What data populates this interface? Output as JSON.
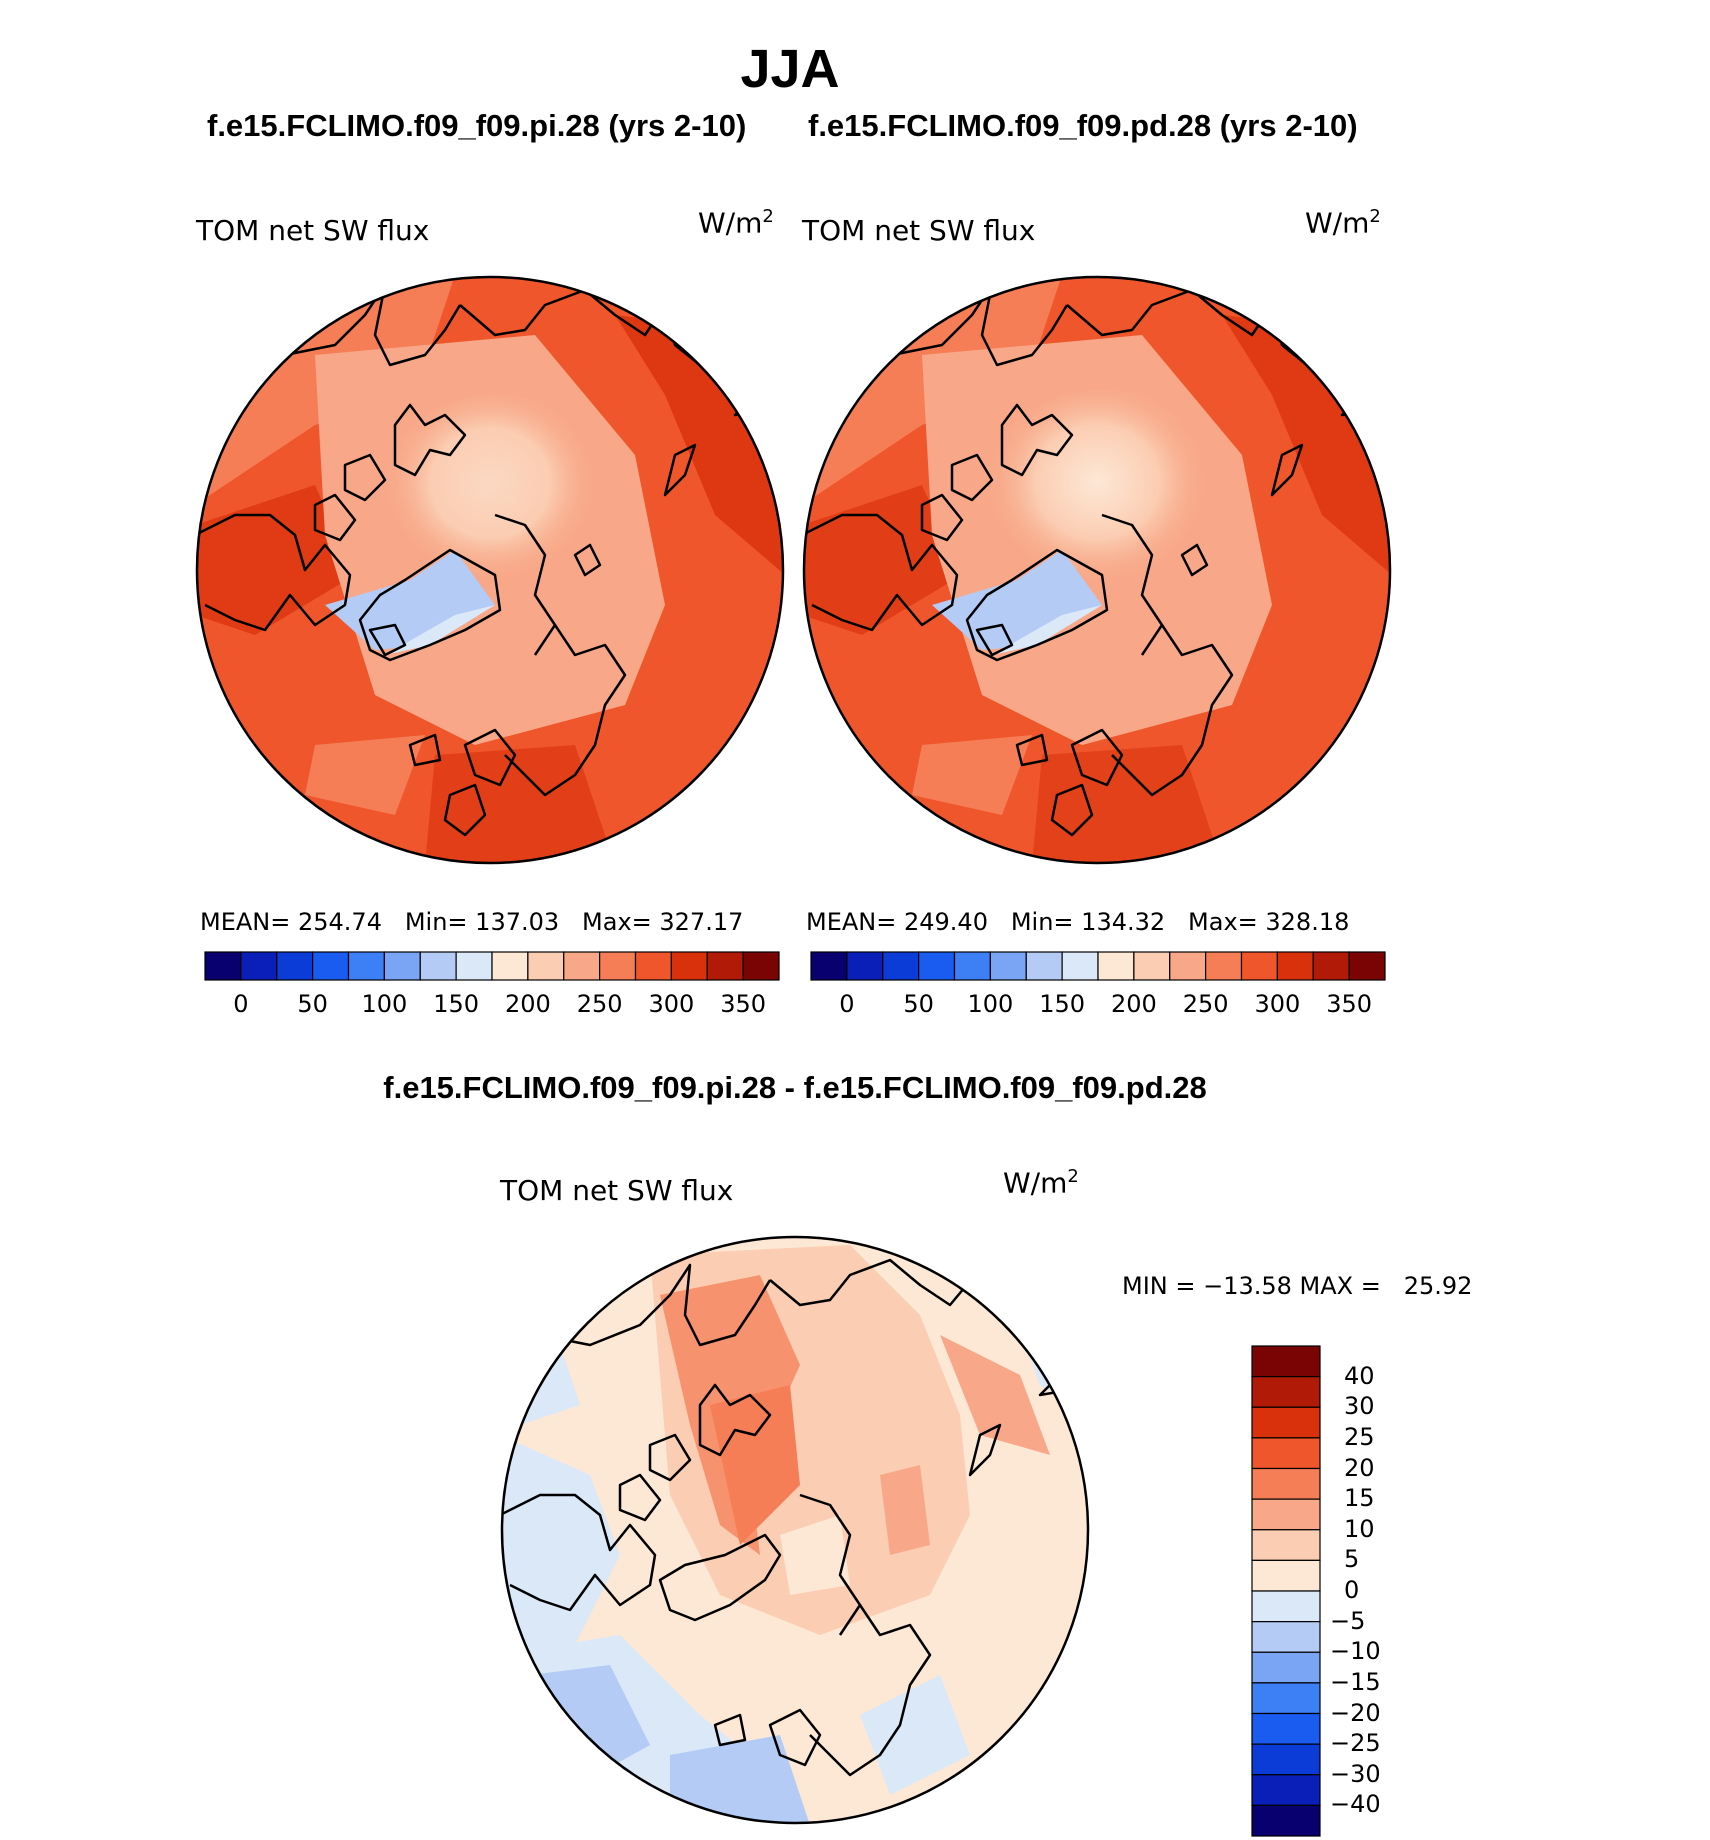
{
  "page": {
    "title": "JJA",
    "diff_title": "f.e15.FCLIMO.f09_f09.pi.28 - f.e15.FCLIMO.f09_f09.pd.28"
  },
  "panels": [
    {
      "model_title": "f.e15.FCLIMO.f09_f09.pi.28 (yrs 2-10)",
      "variable_label": "TOM net SW flux",
      "units_base": "W/m",
      "units_exp": "2",
      "stats": "MEAN= 254.74   Min= 137.03   Max= 327.17"
    },
    {
      "model_title": "f.e15.FCLIMO.f09_f09.pd.28 (yrs 2-10)",
      "variable_label": "TOM net SW flux",
      "units_base": "W/m",
      "units_exp": "2",
      "stats": "MEAN= 249.40   Min= 134.32   Max= 328.18"
    }
  ],
  "diff_panel": {
    "variable_label": "TOM net SW flux",
    "units_base": "W/m",
    "units_exp": "2",
    "minmax": "MIN = −13.58 MAX =   25.92"
  },
  "colors": {
    "abs_scale": [
      "#08006e",
      "#0a1fb8",
      "#0c3cd8",
      "#1a5cf0",
      "#3d7ff5",
      "#7aa5f5",
      "#b3cbf5",
      "#dbe8f8",
      "#fde8d6",
      "#fbcdb2",
      "#f8a888",
      "#f57e57",
      "#f0562c",
      "#d9310c",
      "#b01a06",
      "#7a0404"
    ],
    "diff_scale": [
      "#08006e",
      "#0a1fb8",
      "#0c3cd8",
      "#1a5cf0",
      "#3d7ff5",
      "#7aa5f5",
      "#b3cbf5",
      "#dbe8f8",
      "#fde8d6",
      "#fbcdb2",
      "#f8a888",
      "#f57e57",
      "#f0562c",
      "#d9310c",
      "#b01a06",
      "#7a0404"
    ]
  },
  "chart_data": [
    {
      "type": "heatmap",
      "projection": "north polar stereographic",
      "title": "f.e15.FCLIMO.f09_f09.pi.28 (yrs 2-10)",
      "variable": "TOM net SW flux",
      "units": "W/m2",
      "season": "JJA",
      "mean": 254.74,
      "min": 137.03,
      "max": 327.17,
      "colorbar_ticks": [
        0,
        50,
        100,
        150,
        200,
        250,
        300,
        350
      ],
      "colorbar_range": [
        -25,
        375
      ]
    },
    {
      "type": "heatmap",
      "projection": "north polar stereographic",
      "title": "f.e15.FCLIMO.f09_f09.pd.28 (yrs 2-10)",
      "variable": "TOM net SW flux",
      "units": "W/m2",
      "season": "JJA",
      "mean": 249.4,
      "min": 134.32,
      "max": 328.18,
      "colorbar_ticks": [
        0,
        50,
        100,
        150,
        200,
        250,
        300,
        350
      ],
      "colorbar_range": [
        -25,
        375
      ]
    },
    {
      "type": "heatmap",
      "projection": "north polar stereographic",
      "title": "f.e15.FCLIMO.f09_f09.pi.28 - f.e15.FCLIMO.f09_f09.pd.28",
      "variable": "TOM net SW flux",
      "units": "W/m2",
      "min": -13.58,
      "max": 25.92,
      "colorbar_levels": [
        "40",
        "30",
        "25",
        "20",
        "15",
        "10",
        "5",
        "0",
        "−5",
        "−10",
        "−15",
        "−20",
        "−25",
        "−30",
        "−40"
      ]
    }
  ]
}
